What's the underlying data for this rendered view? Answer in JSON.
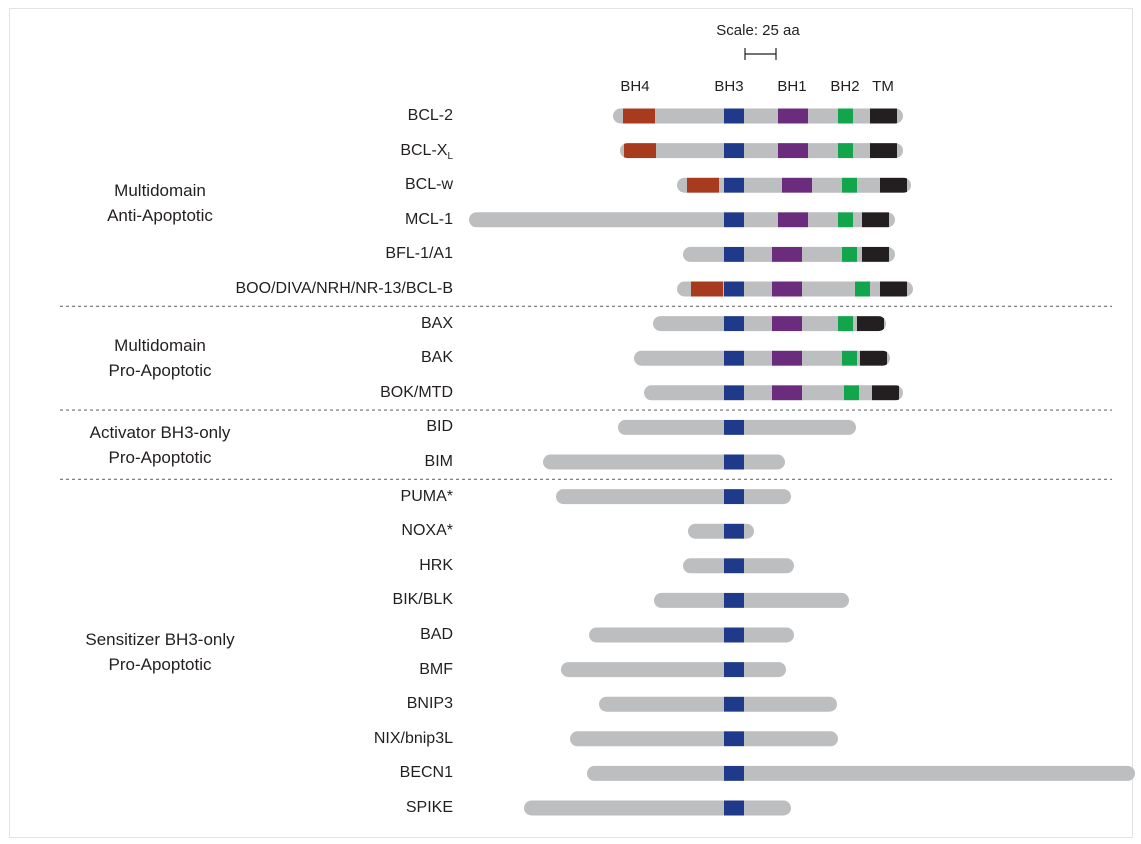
{
  "scale": {
    "label": "Scale: 25 aa"
  },
  "domain_headers": [
    "BH4",
    "BH3",
    "BH1",
    "BH2",
    "TM"
  ],
  "colors": {
    "backbone": "#bcbec0",
    "BH4": "#a83b1e",
    "BH3": "#1f3a8a",
    "BH1": "#6b2c7e",
    "BH2": "#12a54b",
    "TM": "#231f20"
  },
  "groups": [
    {
      "line1": "Multidomain",
      "line2": "Anti-Apoptotic"
    },
    {
      "line1": "Multidomain",
      "line2": "Pro-Apoptotic"
    },
    {
      "line1": "Activator BH3-only",
      "line2": "Pro-Apoptotic"
    },
    {
      "line1": "Sensitizer BH3-only",
      "line2": "Pro-Apoptotic"
    }
  ],
  "proteins": [
    {
      "name": "BCL-2",
      "domains": [
        "BH4",
        "BH3",
        "BH1",
        "BH2",
        "TM"
      ]
    },
    {
      "name": "BCL-X",
      "subscript": "L",
      "domains": [
        "BH4",
        "BH3",
        "BH1",
        "BH2",
        "TM"
      ]
    },
    {
      "name": "BCL-w",
      "domains": [
        "BH4",
        "BH3",
        "BH1",
        "BH2",
        "TM"
      ]
    },
    {
      "name": "MCL-1",
      "domains": [
        "BH3",
        "BH1",
        "BH2",
        "TM"
      ]
    },
    {
      "name": "BFL-1/A1",
      "domains": [
        "BH3",
        "BH1",
        "BH2",
        "TM"
      ]
    },
    {
      "name": "BOO/DIVA/NRH/NR-13/BCL-B",
      "domains": [
        "BH4",
        "BH3",
        "BH1",
        "BH2",
        "TM"
      ]
    },
    {
      "name": "BAX",
      "domains": [
        "BH3",
        "BH1",
        "BH2",
        "TM"
      ]
    },
    {
      "name": "BAK",
      "domains": [
        "BH3",
        "BH1",
        "BH2",
        "TM"
      ]
    },
    {
      "name": "BOK/MTD",
      "domains": [
        "BH3",
        "BH1",
        "BH2",
        "TM"
      ]
    },
    {
      "name": "BID",
      "domains": [
        "BH3"
      ]
    },
    {
      "name": "BIM",
      "domains": [
        "BH3"
      ]
    },
    {
      "name": "PUMA*",
      "domains": [
        "BH3"
      ]
    },
    {
      "name": "NOXA*",
      "domains": [
        "BH3"
      ]
    },
    {
      "name": "HRK",
      "domains": [
        "BH3"
      ]
    },
    {
      "name": "BIK/BLK",
      "domains": [
        "BH3"
      ]
    },
    {
      "name": "BAD",
      "domains": [
        "BH3"
      ]
    },
    {
      "name": "BMF",
      "domains": [
        "BH3"
      ]
    },
    {
      "name": "BNIP3",
      "domains": [
        "BH3"
      ]
    },
    {
      "name": "NIX/bnip3L",
      "domains": [
        "BH3"
      ]
    },
    {
      "name": "BECN1",
      "domains": [
        "BH3"
      ]
    },
    {
      "name": "SPIKE",
      "domains": [
        "BH3"
      ]
    }
  ]
}
